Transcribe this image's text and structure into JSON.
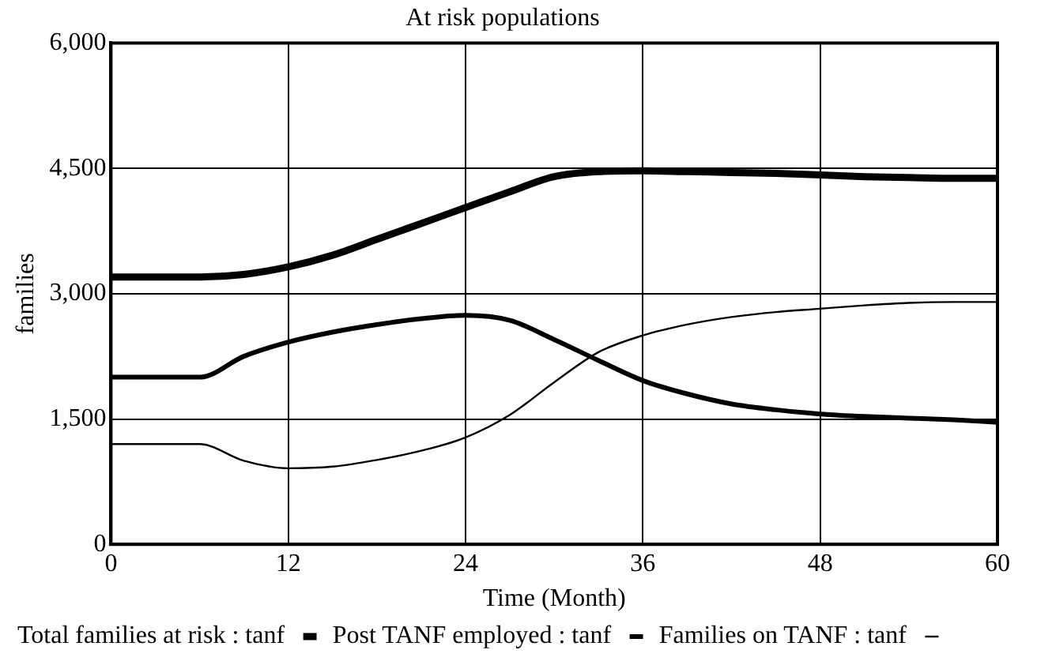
{
  "chart_data": {
    "type": "line",
    "title": "At risk populations",
    "xlabel": "Time (Month)",
    "ylabel": "families",
    "x": [
      0,
      3,
      6,
      9,
      12,
      15,
      18,
      21,
      24,
      27,
      30,
      33,
      36,
      39,
      42,
      45,
      48,
      51,
      54,
      57,
      60
    ],
    "series": [
      {
        "name": "Families on TANF : tanf",
        "color": "#000000",
        "values": [
          1200,
          1200,
          1200,
          1000,
          910,
          930,
          1010,
          1120,
          1280,
          1550,
          1940,
          2300,
          2500,
          2630,
          2720,
          2780,
          2820,
          2860,
          2890,
          2900,
          2900
        ]
      },
      {
        "name": "Post TANF employed : tanf",
        "color": "#000000",
        "values": [
          2000,
          2000,
          2000,
          2250,
          2420,
          2540,
          2630,
          2700,
          2740,
          2680,
          2450,
          2200,
          1960,
          1800,
          1680,
          1610,
          1560,
          1530,
          1510,
          1490,
          1460
        ]
      },
      {
        "name": "Total families at risk : tanf",
        "color": "#000000",
        "values": [
          3200,
          3200,
          3200,
          3230,
          3320,
          3460,
          3650,
          3840,
          4030,
          4220,
          4400,
          4460,
          4470,
          4460,
          4450,
          4440,
          4420,
          4400,
          4390,
          4380,
          4380
        ]
      }
    ],
    "xlim": [
      0,
      60
    ],
    "xticks": [
      0,
      12,
      24,
      36,
      48,
      60
    ],
    "ylim": [
      0,
      6000
    ],
    "yticks": [
      0,
      {
        "value": 1500,
        "label": "1,500"
      },
      {
        "value": 3000,
        "label": "3,000"
      },
      {
        "value": 4500,
        "label": "4,500"
      },
      {
        "value": 6000,
        "label": "6,000"
      }
    ],
    "grid": true,
    "legend": "bottom",
    "marker": "none",
    "line_style": "solid"
  }
}
